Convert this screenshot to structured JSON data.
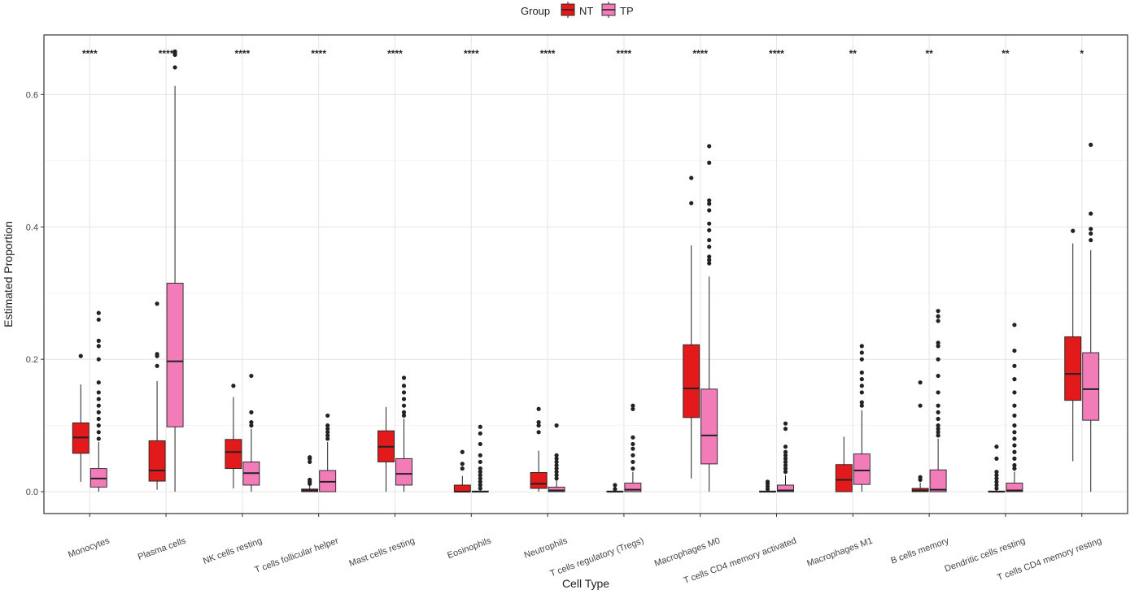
{
  "chart_data": {
    "type": "box",
    "title": "",
    "xlabel": "Cell Type",
    "ylabel": "Estimated Proportion",
    "ylim": [
      -0.033,
      0.69
    ],
    "yticks": [
      0.0,
      0.2,
      0.4,
      0.6
    ],
    "ytick_labels": [
      "0.0",
      "0.2",
      "0.4",
      "0.6"
    ],
    "grid": true,
    "legend": {
      "title": "Group",
      "position": "top",
      "entries": [
        "NT",
        "TP"
      ]
    },
    "colors": {
      "NT": "#e31a1c",
      "TP": "#f17cb8",
      "outline": "#222222",
      "grid": "#e6e6e6",
      "panel_border": "#333333"
    },
    "categories": [
      "Monocytes",
      "Plasma cells",
      "NK cells resting",
      "T cells follicular helper",
      "Mast cells resting",
      "Eosinophils",
      "Neutrophils",
      "T cells regulatory (Tregs)",
      "Macrophages M0",
      "T cells CD4 memory activated",
      "Macrophages M1",
      "B cells memory",
      "Dendritic cells resting",
      "T cells CD4 memory resting"
    ],
    "significance": [
      "****",
      "****",
      "****",
      "****",
      "****",
      "****",
      "****",
      "****",
      "****",
      "****",
      "**",
      "**",
      "**",
      "*"
    ],
    "series": [
      {
        "name": "NT",
        "boxes": [
          {
            "whisker_low": 0.015,
            "q1": 0.058,
            "median": 0.082,
            "q3": 0.104,
            "whisker_high": 0.162,
            "outliers": [
              0.205
            ]
          },
          {
            "whisker_low": 0.003,
            "q1": 0.016,
            "median": 0.032,
            "q3": 0.077,
            "whisker_high": 0.167,
            "outliers": [
              0.19,
              0.205,
              0.208,
              0.284
            ]
          },
          {
            "whisker_low": 0.005,
            "q1": 0.035,
            "median": 0.06,
            "q3": 0.079,
            "whisker_high": 0.143,
            "outliers": [
              0.16
            ]
          },
          {
            "whisker_low": 0.0,
            "q1": 0.0,
            "median": 0.002,
            "q3": 0.004,
            "whisker_high": 0.01,
            "outliers": [
              0.012,
              0.015,
              0.018,
              0.045,
              0.05,
              0.052
            ]
          },
          {
            "whisker_low": 0.0,
            "q1": 0.045,
            "median": 0.068,
            "q3": 0.092,
            "whisker_high": 0.128,
            "outliers": []
          },
          {
            "whisker_low": 0.0,
            "q1": 0.0,
            "median": 0.0,
            "q3": 0.01,
            "whisker_high": 0.024,
            "outliers": [
              0.035,
              0.042,
              0.06
            ]
          },
          {
            "whisker_low": 0.0,
            "q1": 0.005,
            "median": 0.012,
            "q3": 0.029,
            "whisker_high": 0.062,
            "outliers": [
              0.09,
              0.1,
              0.105,
              0.125
            ]
          },
          {
            "whisker_low": 0.0,
            "q1": 0.0,
            "median": 0.0,
            "q3": 0.001,
            "whisker_high": 0.002,
            "outliers": [
              0.004,
              0.01
            ]
          },
          {
            "whisker_low": 0.02,
            "q1": 0.112,
            "median": 0.156,
            "q3": 0.222,
            "whisker_high": 0.372,
            "outliers": [
              0.436,
              0.474
            ]
          },
          {
            "whisker_low": 0.0,
            "q1": 0.0,
            "median": 0.0,
            "q3": 0.001,
            "whisker_high": 0.002,
            "outliers": [
              0.004,
              0.008,
              0.012,
              0.015
            ]
          },
          {
            "whisker_low": 0.0,
            "q1": 0.0,
            "median": 0.018,
            "q3": 0.041,
            "whisker_high": 0.083,
            "outliers": []
          },
          {
            "whisker_low": 0.0,
            "q1": 0.0,
            "median": 0.002,
            "q3": 0.005,
            "whisker_high": 0.014,
            "outliers": [
              0.018,
              0.022,
              0.13,
              0.165
            ]
          },
          {
            "whisker_low": 0.0,
            "q1": 0.0,
            "median": 0.0,
            "q3": 0.001,
            "whisker_high": 0.002,
            "outliers": [
              0.005,
              0.01,
              0.015,
              0.02,
              0.025,
              0.03,
              0.05,
              0.068
            ]
          },
          {
            "whisker_low": 0.046,
            "q1": 0.138,
            "median": 0.178,
            "q3": 0.234,
            "whisker_high": 0.375,
            "outliers": [
              0.394
            ]
          }
        ]
      },
      {
        "name": "TP",
        "boxes": [
          {
            "whisker_low": 0.0,
            "q1": 0.007,
            "median": 0.02,
            "q3": 0.035,
            "whisker_high": 0.075,
            "outliers": [
              0.08,
              0.09,
              0.1,
              0.11,
              0.12,
              0.13,
              0.14,
              0.15,
              0.165,
              0.2,
              0.22,
              0.228,
              0.26,
              0.27
            ]
          },
          {
            "whisker_low": 0.0,
            "q1": 0.098,
            "median": 0.197,
            "q3": 0.315,
            "whisker_high": 0.613,
            "outliers": [
              0.641,
              0.66,
              0.663,
              0.665
            ]
          },
          {
            "whisker_low": 0.0,
            "q1": 0.01,
            "median": 0.028,
            "q3": 0.045,
            "whisker_high": 0.095,
            "outliers": [
              0.1,
              0.105,
              0.12,
              0.175
            ]
          },
          {
            "whisker_low": 0.0,
            "q1": 0.0,
            "median": 0.015,
            "q3": 0.032,
            "whisker_high": 0.075,
            "outliers": [
              0.08,
              0.085,
              0.09,
              0.095,
              0.1,
              0.115
            ]
          },
          {
            "whisker_low": 0.0,
            "q1": 0.01,
            "median": 0.027,
            "q3": 0.05,
            "whisker_high": 0.11,
            "outliers": [
              0.115,
              0.12,
              0.13,
              0.14,
              0.15,
              0.16,
              0.172
            ]
          },
          {
            "whisker_low": 0.0,
            "q1": 0.0,
            "median": 0.0,
            "q3": 0.001,
            "whisker_high": 0.002,
            "outliers": [
              0.005,
              0.01,
              0.015,
              0.02,
              0.025,
              0.03,
              0.035,
              0.045,
              0.055,
              0.072,
              0.088,
              0.098
            ]
          },
          {
            "whisker_low": 0.0,
            "q1": 0.0,
            "median": 0.002,
            "q3": 0.007,
            "whisker_high": 0.017,
            "outliers": [
              0.02,
              0.025,
              0.03,
              0.035,
              0.04,
              0.045,
              0.05,
              0.055,
              0.1
            ]
          },
          {
            "whisker_low": 0.0,
            "q1": 0.0,
            "median": 0.003,
            "q3": 0.013,
            "whisker_high": 0.03,
            "outliers": [
              0.035,
              0.045,
              0.055,
              0.065,
              0.072,
              0.082,
              0.125,
              0.13
            ]
          },
          {
            "whisker_low": 0.0,
            "q1": 0.042,
            "median": 0.085,
            "q3": 0.155,
            "whisker_high": 0.325,
            "outliers": [
              0.345,
              0.35,
              0.355,
              0.37,
              0.38,
              0.395,
              0.405,
              0.425,
              0.435,
              0.44,
              0.497,
              0.522
            ]
          },
          {
            "whisker_low": 0.0,
            "q1": 0.0,
            "median": 0.002,
            "q3": 0.01,
            "whisker_high": 0.025,
            "outliers": [
              0.03,
              0.035,
              0.04,
              0.045,
              0.05,
              0.055,
              0.06,
              0.068,
              0.095,
              0.103
            ]
          },
          {
            "whisker_low": 0.0,
            "q1": 0.011,
            "median": 0.032,
            "q3": 0.057,
            "whisker_high": 0.123,
            "outliers": [
              0.13,
              0.135,
              0.15,
              0.16,
              0.17,
              0.18,
              0.2,
              0.21,
              0.22
            ]
          },
          {
            "whisker_low": 0.0,
            "q1": 0.0,
            "median": 0.003,
            "q3": 0.033,
            "whisker_high": 0.08,
            "outliers": [
              0.085,
              0.09,
              0.095,
              0.1,
              0.11,
              0.12,
              0.13,
              0.15,
              0.175,
              0.2,
              0.22,
              0.225,
              0.258,
              0.265,
              0.273
            ]
          },
          {
            "whisker_low": 0.0,
            "q1": 0.0,
            "median": 0.002,
            "q3": 0.013,
            "whisker_high": 0.03,
            "outliers": [
              0.035,
              0.04,
              0.05,
              0.06,
              0.07,
              0.08,
              0.09,
              0.1,
              0.115,
              0.13,
              0.15,
              0.17,
              0.19,
              0.213,
              0.252
            ]
          },
          {
            "whisker_low": 0.0,
            "q1": 0.108,
            "median": 0.155,
            "q3": 0.21,
            "whisker_high": 0.365,
            "outliers": [
              0.38,
              0.39,
              0.397,
              0.42,
              0.524
            ]
          }
        ]
      }
    ]
  }
}
